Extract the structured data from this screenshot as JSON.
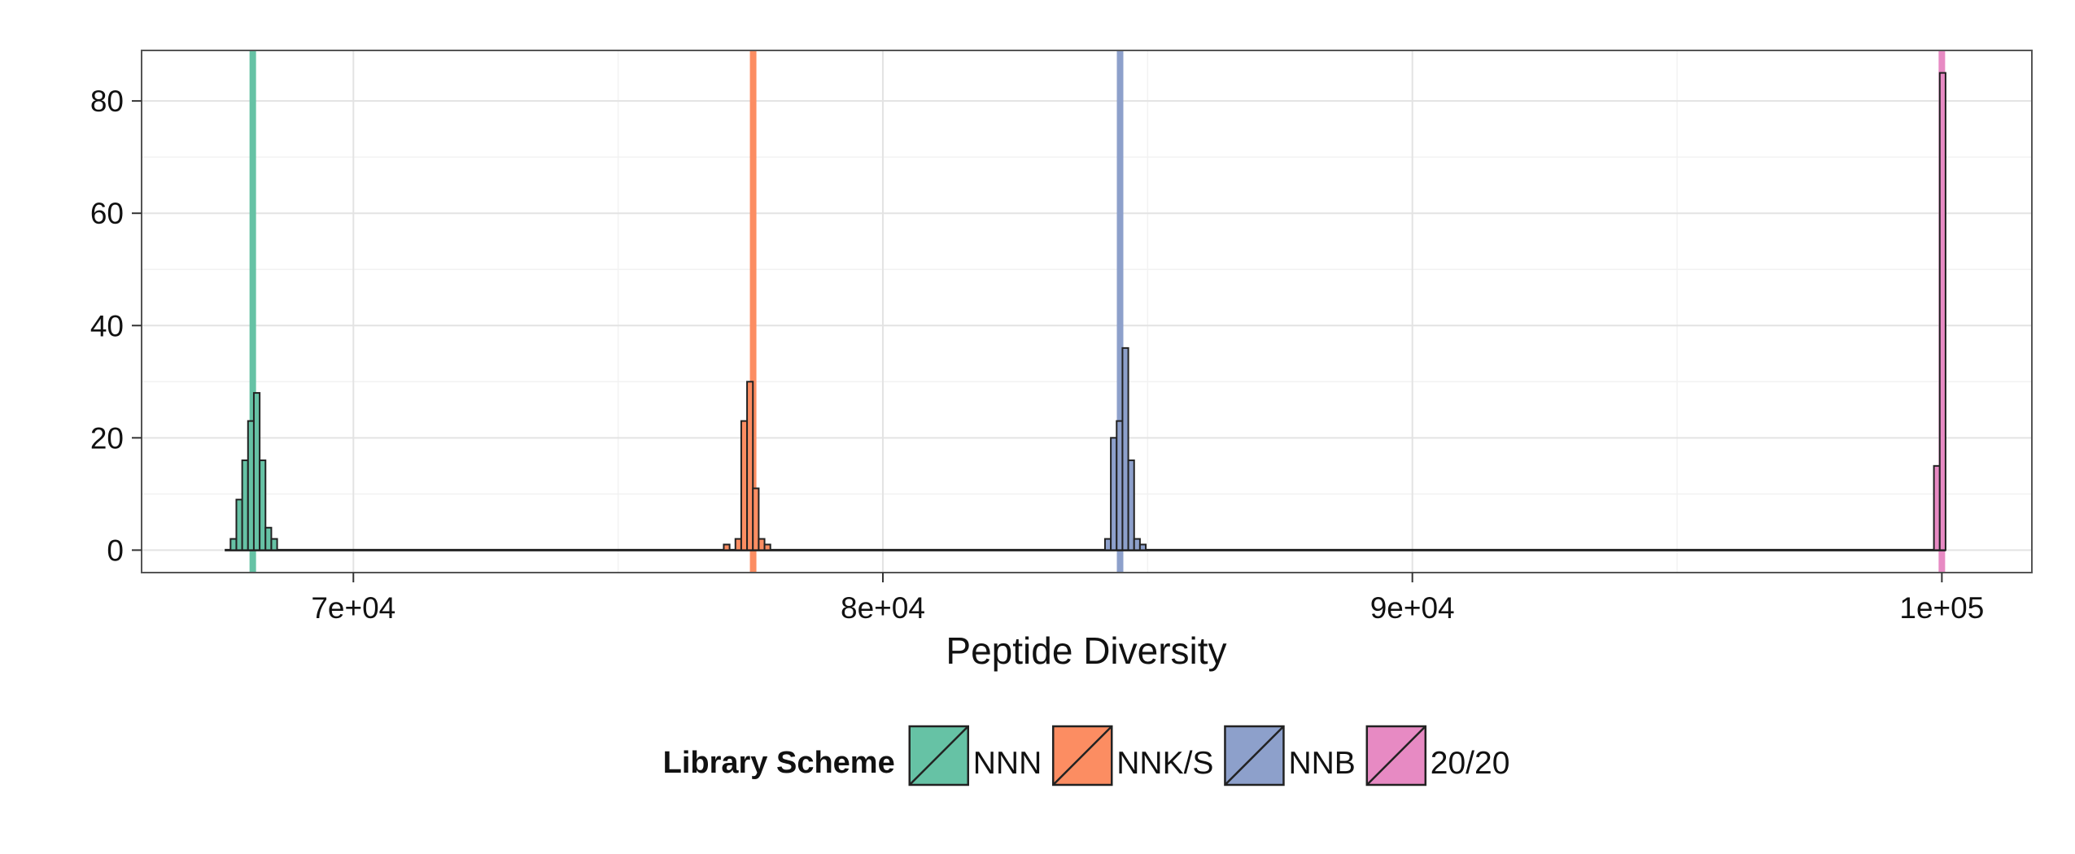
{
  "chart_data": {
    "type": "bar",
    "subtype": "histogram",
    "title": "",
    "xlabel": "Peptide Diversity",
    "ylabel": "",
    "xlim": [
      66000,
      101700
    ],
    "ylim": [
      -4,
      89
    ],
    "x_ticks": [
      70000,
      80000,
      90000,
      100000
    ],
    "x_tick_labels": [
      "7e+04",
      "8e+04",
      "9e+04",
      "1e+05"
    ],
    "y_ticks": [
      0,
      20,
      40,
      60,
      80
    ],
    "y_tick_labels": [
      "0",
      "20",
      "40",
      "60",
      "80"
    ],
    "grid": true,
    "bin_width": 110,
    "legend": {
      "title": "Library Scheme",
      "position": "bottom"
    },
    "series": [
      {
        "name": "NNN",
        "color": "#66c2a5",
        "reference_line": 68100,
        "bins": [
          {
            "x": 67625,
            "count": 0
          },
          {
            "x": 67735,
            "count": 2
          },
          {
            "x": 67845,
            "count": 9
          },
          {
            "x": 67955,
            "count": 16
          },
          {
            "x": 68065,
            "count": 23
          },
          {
            "x": 68175,
            "count": 28
          },
          {
            "x": 68285,
            "count": 16
          },
          {
            "x": 68395,
            "count": 4
          },
          {
            "x": 68505,
            "count": 2
          }
        ]
      },
      {
        "name": "NNK/S",
        "color": "#fc8d62",
        "reference_line": 77550,
        "bins": [
          {
            "x": 77050,
            "count": 1
          },
          {
            "x": 77160,
            "count": 0
          },
          {
            "x": 77270,
            "count": 2
          },
          {
            "x": 77380,
            "count": 23
          },
          {
            "x": 77490,
            "count": 30
          },
          {
            "x": 77600,
            "count": 11
          },
          {
            "x": 77710,
            "count": 2
          },
          {
            "x": 77820,
            "count": 1
          }
        ]
      },
      {
        "name": "NNB",
        "color": "#8da0cb",
        "reference_line": 84480,
        "bins": [
          {
            "x": 84250,
            "count": 2
          },
          {
            "x": 84360,
            "count": 20
          },
          {
            "x": 84470,
            "count": 23
          },
          {
            "x": 84580,
            "count": 36
          },
          {
            "x": 84690,
            "count": 16
          },
          {
            "x": 84800,
            "count": 2
          },
          {
            "x": 84910,
            "count": 1
          }
        ]
      },
      {
        "name": "20/20",
        "color": "#e78ac3",
        "reference_line": 100000,
        "bins": [
          {
            "x": 99905,
            "count": 15
          },
          {
            "x": 100015,
            "count": 85
          }
        ]
      }
    ]
  }
}
